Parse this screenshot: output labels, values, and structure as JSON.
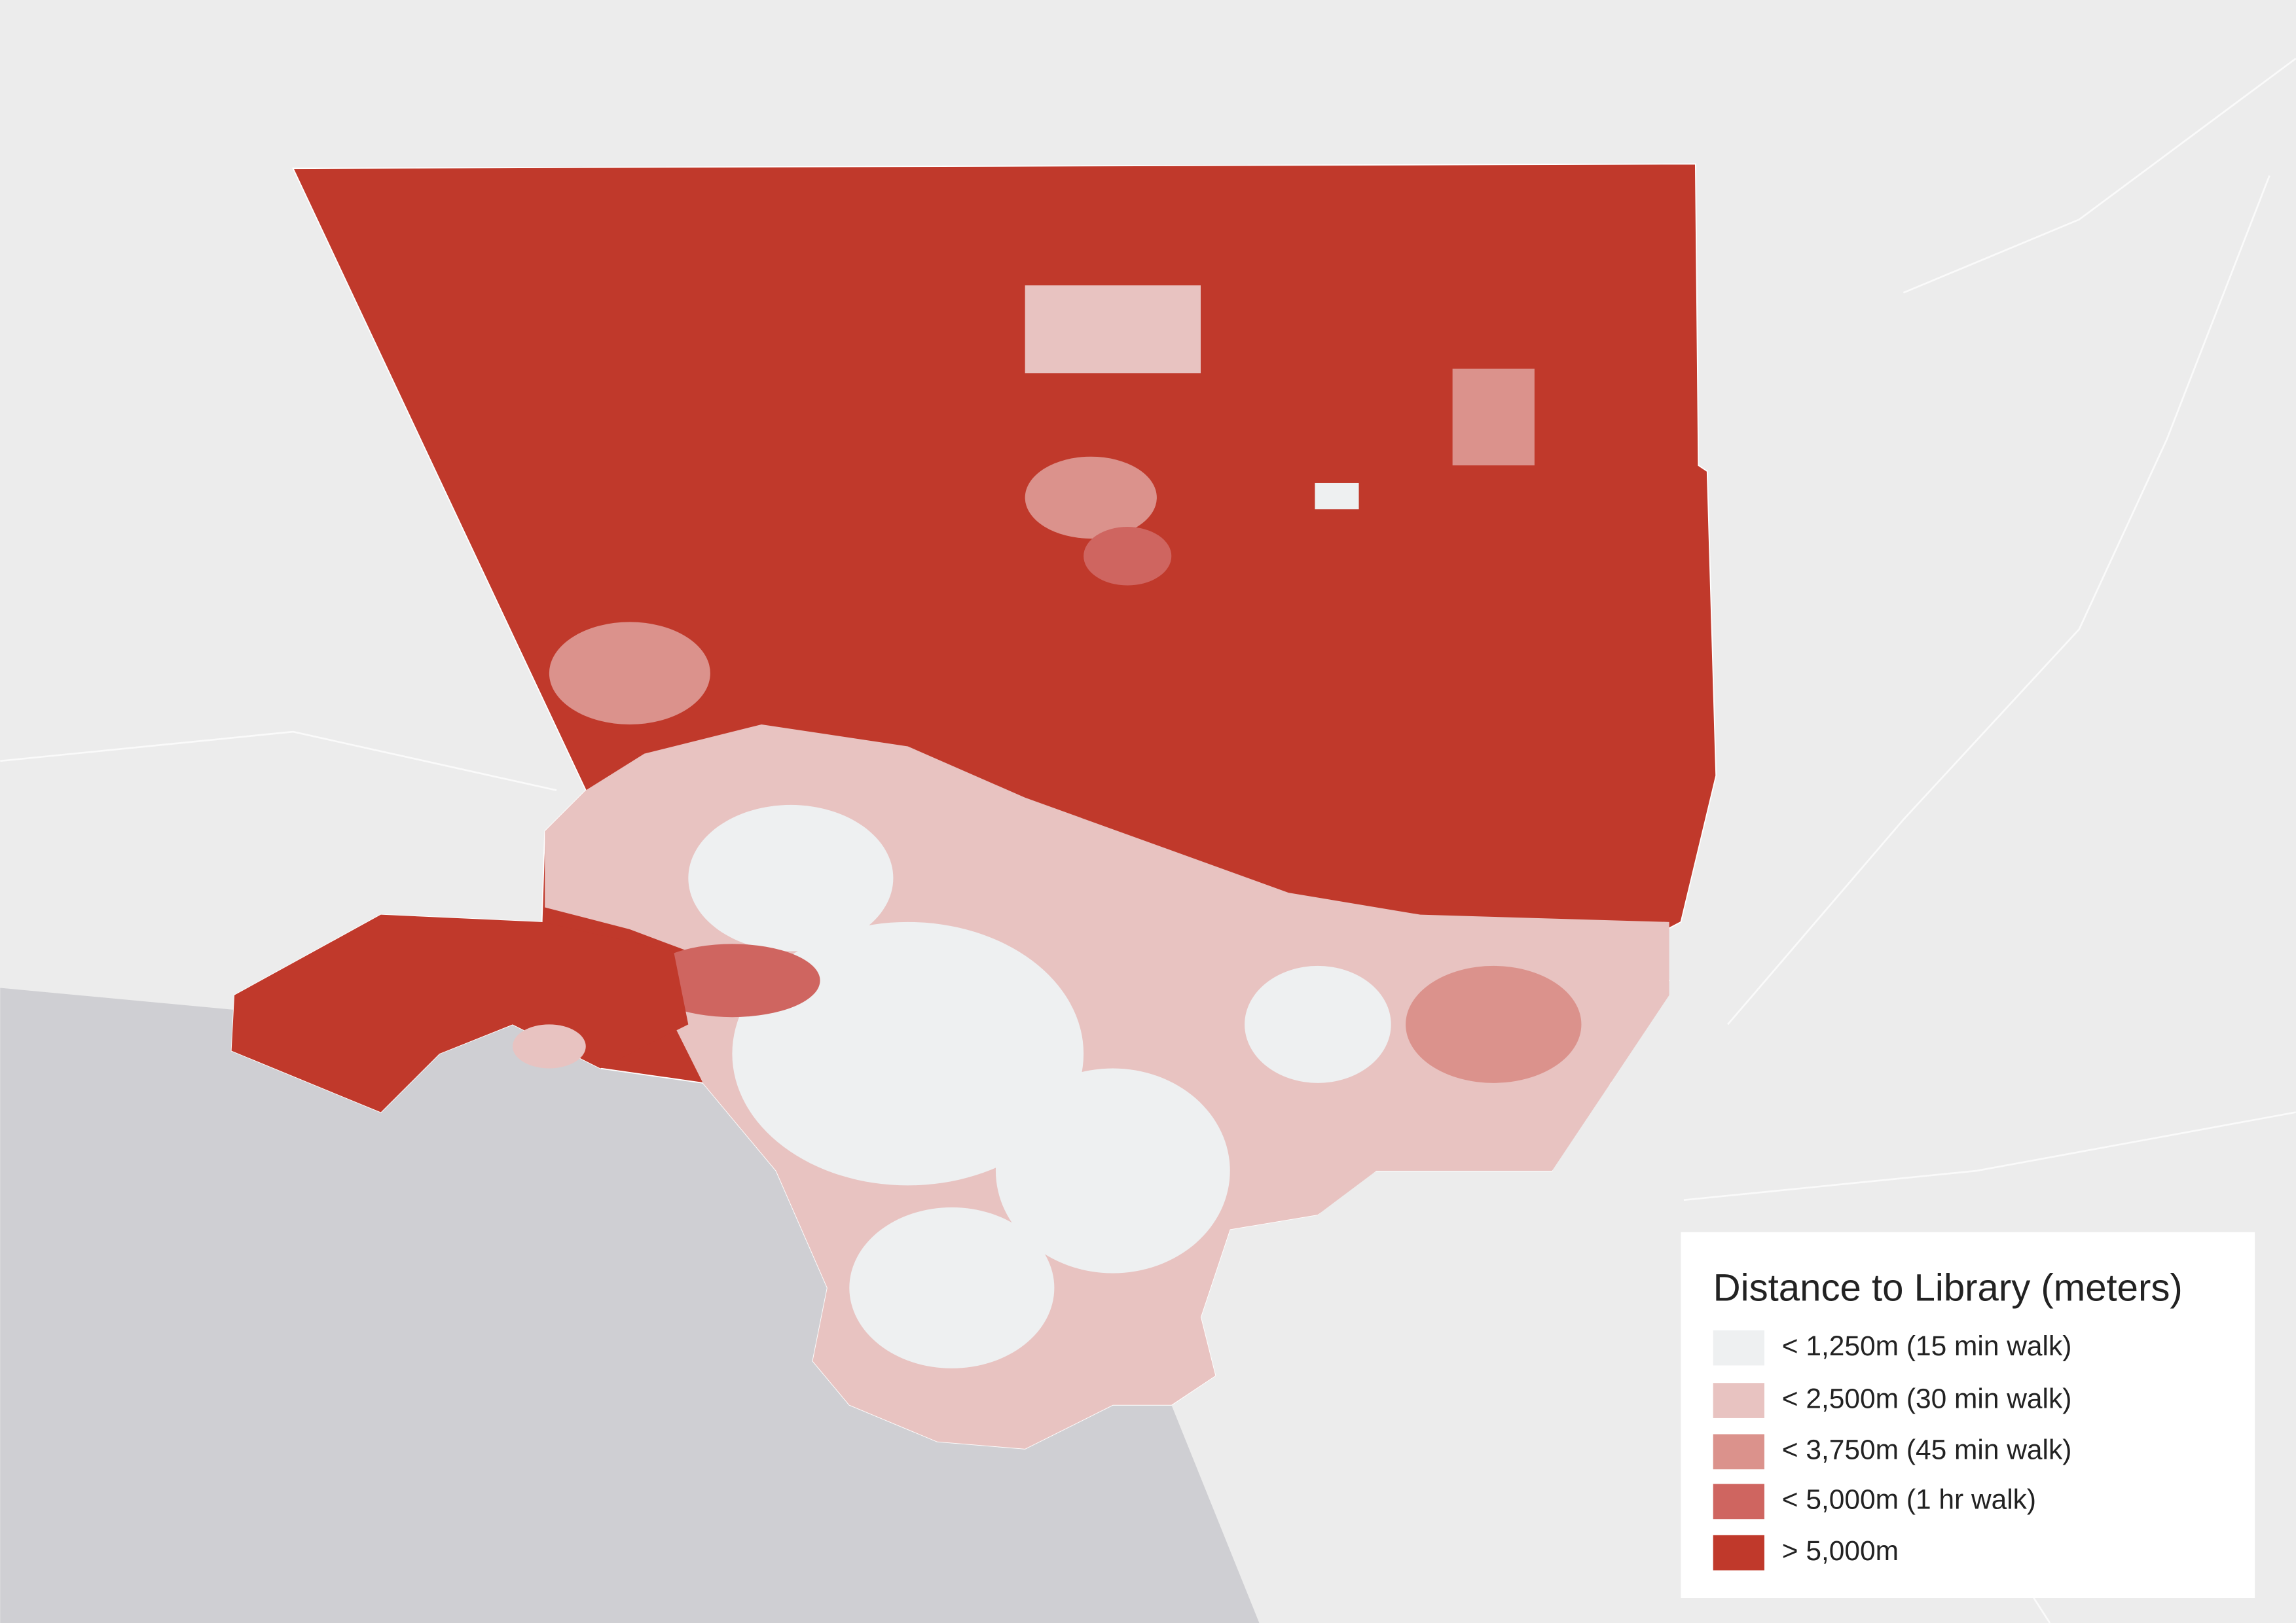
{
  "legend": {
    "title": "Distance to Library (meters)",
    "items": [
      {
        "label": "< 1,250m (15 min walk)",
        "color": "#eef0f1"
      },
      {
        "label": "< 2,500m (30 min walk)",
        "color": "#e8c3c1"
      },
      {
        "label": "< 3,750m (45 min walk)",
        "color": "#db928c"
      },
      {
        "label": "< 5,000m (1 hr walk)",
        "color": "#cf6560"
      },
      {
        "label": "> 5,000m",
        "color": "#c0392b"
      }
    ]
  }
}
